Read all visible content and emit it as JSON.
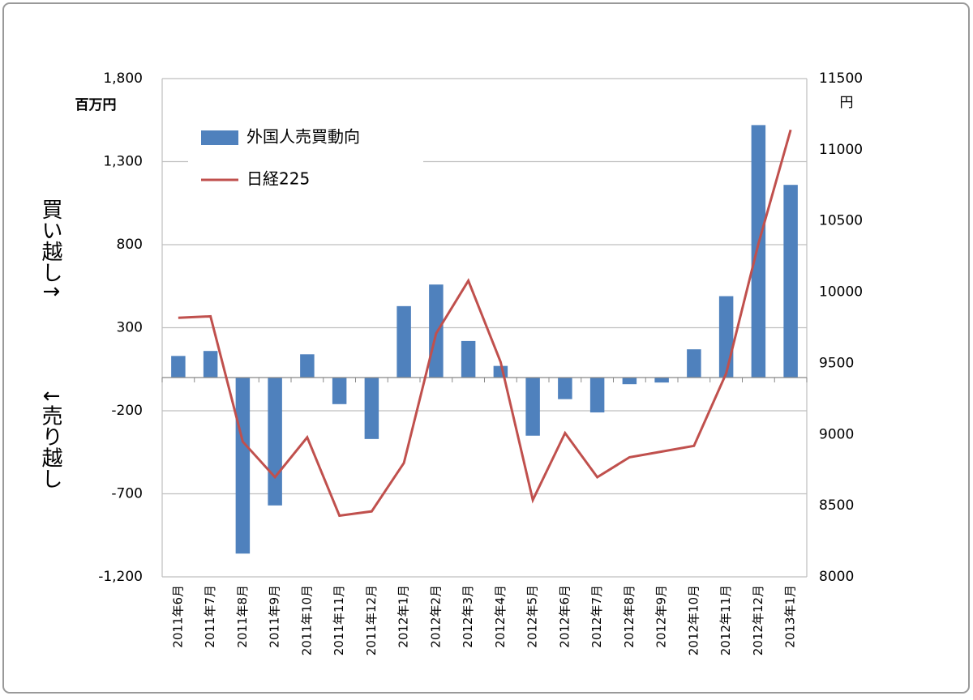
{
  "chart_data": {
    "type": "bar",
    "categories": [
      "2011年6月",
      "2011年7月",
      "2011年8月",
      "2011年9月",
      "2011年10月",
      "2011年11月",
      "2011年12月",
      "2012年1月",
      "2012年2月",
      "2012年3月",
      "2012年4月",
      "2012年5月",
      "2012年6月",
      "2012年7月",
      "2012年8月",
      "2012年9月",
      "2012年10月",
      "2012年11月",
      "2012年12月",
      "2013年1月"
    ],
    "series": [
      {
        "name": "外国人売買動向",
        "type": "bar",
        "color": "#4f81bd",
        "values": [
          130,
          160,
          -1060,
          -770,
          140,
          -160,
          -370,
          430,
          560,
          220,
          70,
          -350,
          -130,
          -210,
          -40,
          -30,
          170,
          490,
          1520,
          1160
        ]
      },
      {
        "name": "日経225",
        "type": "line",
        "axis": "y2",
        "color": "#c0504d",
        "values": [
          9820,
          9830,
          8950,
          8700,
          8980,
          8430,
          8460,
          8800,
          9710,
          10080,
          9510,
          8540,
          9010,
          8700,
          8840,
          8880,
          8920,
          9430,
          10340,
          11140
        ]
      }
    ],
    "ylim": [
      -1200,
      1800
    ],
    "yticks": [
      {
        "value": 1800,
        "label": "1,800"
      },
      {
        "value": 1300,
        "label": "1,300"
      },
      800,
      300,
      -200,
      -700,
      {
        "value": -1200,
        "label": "-1,200"
      }
    ],
    "y2lim": [
      8000,
      11500
    ],
    "y2ticks": [
      8000,
      8500,
      9000,
      9500,
      10000,
      10500,
      11000,
      11500
    ],
    "y_unit": "百万円",
    "y2_unit": "円",
    "y_label_top": "買い越し↑",
    "y_label_bottom": "↓売り越し",
    "grid": true
  }
}
